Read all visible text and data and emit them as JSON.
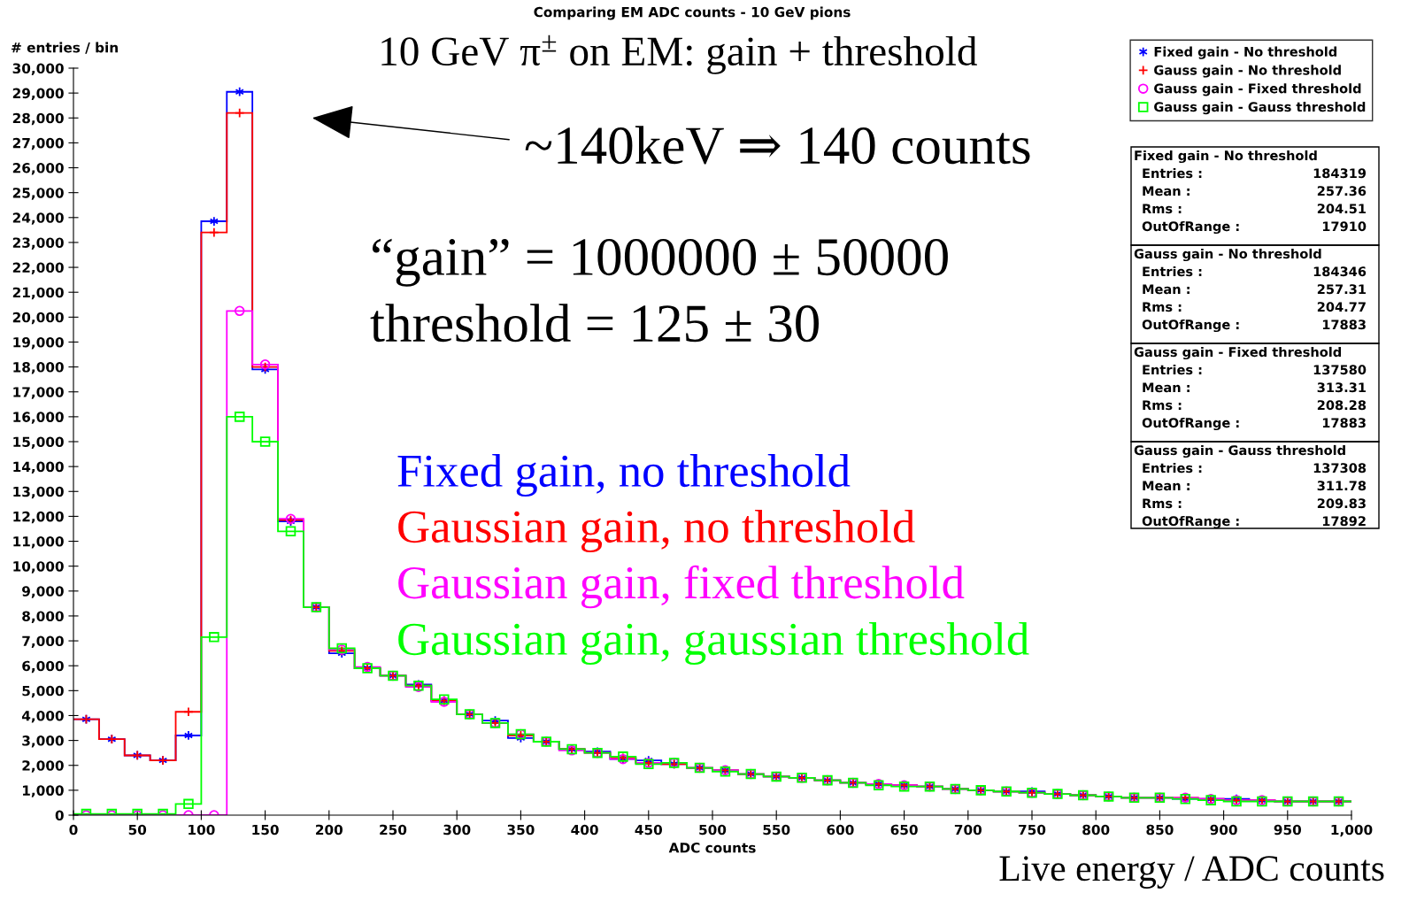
{
  "chart_data": {
    "type": "histogram",
    "title": "Comparing EM ADC counts - 10 GeV pions",
    "xlabel": "ADC counts",
    "ylabel": "# entries / bin",
    "bins": [
      0,
      20,
      40,
      60,
      80,
      100,
      120,
      140,
      160,
      180,
      200,
      220,
      240,
      260,
      280,
      300,
      320,
      340,
      360,
      380,
      400,
      420,
      440,
      460,
      480,
      500,
      520,
      540,
      560,
      580,
      600,
      620,
      640,
      660,
      680,
      700,
      720,
      740,
      760,
      780,
      800,
      820,
      840,
      860,
      880,
      900,
      920,
      940,
      960,
      980,
      1000
    ],
    "series": [
      {
        "name": "Fixed gain - No threshold",
        "color": "#0000ff",
        "marker": "star",
        "values": [
          3850,
          3050,
          2400,
          2200,
          3200,
          23850,
          29050,
          17900,
          11800,
          8350,
          6500,
          5900,
          5600,
          5250,
          4600,
          4050,
          3800,
          3100,
          2950,
          2650,
          2550,
          2250,
          2200,
          2050,
          1900,
          1800,
          1650,
          1550,
          1500,
          1400,
          1300,
          1250,
          1200,
          1150,
          1050,
          1000,
          950,
          950,
          850,
          800,
          750,
          700,
          700,
          650,
          650,
          650,
          600,
          550,
          550,
          550
        ]
      },
      {
        "name": "Gauss gain - No threshold",
        "color": "#ff0000",
        "marker": "cross",
        "values": [
          3850,
          3050,
          2400,
          2200,
          4150,
          23400,
          28200,
          18000,
          11850,
          8350,
          6600,
          5900,
          5600,
          5200,
          4600,
          4050,
          3700,
          3200,
          2950,
          2650,
          2500,
          2300,
          2100,
          2050,
          1900,
          1800,
          1650,
          1550,
          1500,
          1400,
          1300,
          1250,
          1200,
          1150,
          1050,
          1000,
          950,
          900,
          850,
          800,
          750,
          700,
          700,
          700,
          650,
          600,
          600,
          550,
          550,
          550
        ]
      },
      {
        "name": "Gauss gain - Fixed threshold",
        "color": "#ff00ff",
        "marker": "circle",
        "values": [
          0,
          0,
          0,
          0,
          0,
          0,
          20250,
          18100,
          11900,
          8350,
          6650,
          5950,
          5600,
          5150,
          4550,
          4050,
          3700,
          3250,
          2950,
          2600,
          2500,
          2250,
          2100,
          2100,
          1900,
          1800,
          1650,
          1550,
          1500,
          1400,
          1300,
          1250,
          1200,
          1150,
          1050,
          1000,
          950,
          900,
          850,
          800,
          750,
          700,
          700,
          700,
          650,
          600,
          600,
          550,
          550,
          550
        ]
      },
      {
        "name": "Gauss gain - Gauss threshold",
        "color": "#00ff00",
        "marker": "square",
        "values": [
          50,
          50,
          50,
          50,
          450,
          7150,
          16000,
          15000,
          11400,
          8350,
          6700,
          5900,
          5600,
          5200,
          4650,
          4050,
          3700,
          3250,
          2950,
          2650,
          2500,
          2350,
          2050,
          2100,
          1900,
          1750,
          1650,
          1550,
          1500,
          1400,
          1300,
          1200,
          1150,
          1150,
          1050,
          1000,
          950,
          900,
          850,
          800,
          750,
          700,
          700,
          650,
          600,
          550,
          550,
          550,
          550,
          550
        ]
      }
    ],
    "xlim": [
      0,
      1000
    ],
    "xticks": [
      0,
      50,
      100,
      150,
      200,
      250,
      300,
      350,
      400,
      450,
      500,
      550,
      600,
      650,
      700,
      750,
      800,
      850,
      900,
      950,
      {
        "value": 1000,
        "label": "1,000"
      }
    ],
    "ylim": [
      0,
      30000
    ],
    "yticks": [
      0,
      {
        "value": 1000,
        "label": "1,000"
      },
      {
        "value": 2000,
        "label": "2,000"
      },
      {
        "value": 3000,
        "label": "3,000"
      },
      {
        "value": 4000,
        "label": "4,000"
      },
      {
        "value": 5000,
        "label": "5,000"
      },
      {
        "value": 6000,
        "label": "6,000"
      },
      {
        "value": 7000,
        "label": "7,000"
      },
      {
        "value": 8000,
        "label": "8,000"
      },
      {
        "value": 9000,
        "label": "9,000"
      },
      {
        "value": 10000,
        "label": "10,000"
      },
      {
        "value": 11000,
        "label": "11,000"
      },
      {
        "value": 12000,
        "label": "12,000"
      },
      {
        "value": 13000,
        "label": "13,000"
      },
      {
        "value": 14000,
        "label": "14,000"
      },
      {
        "value": 15000,
        "label": "15,000"
      },
      {
        "value": 16000,
        "label": "16,000"
      },
      {
        "value": 17000,
        "label": "17,000"
      },
      {
        "value": 18000,
        "label": "18,000"
      },
      {
        "value": 19000,
        "label": "19,000"
      },
      {
        "value": 20000,
        "label": "20,000"
      },
      {
        "value": 21000,
        "label": "21,000"
      },
      {
        "value": 22000,
        "label": "22,000"
      },
      {
        "value": 23000,
        "label": "23,000"
      },
      {
        "value": 24000,
        "label": "24,000"
      },
      {
        "value": 25000,
        "label": "25,000"
      },
      {
        "value": 26000,
        "label": "26,000"
      },
      {
        "value": 27000,
        "label": "27,000"
      },
      {
        "value": 28000,
        "label": "28,000"
      },
      {
        "value": 29000,
        "label": "29,000"
      },
      {
        "value": 30000,
        "label": "30,000"
      }
    ],
    "grid": false,
    "legend": "top right",
    "annotations": [
      "10 GeV π$^{±}$ on EM: gain + threshold",
      "~140keV ⇒ 140 counts",
      "“gain” = 1000000 ± 50000",
      "threshold = 125 ± 30",
      "Fixed gain, no threshold",
      "Gaussian gain, no threshold",
      "Gaussian gain, fixed threshold",
      "Gaussian gain, gaussian threshold",
      "Live energy / ADC counts",
      "Fixed gain - No threshold\nEntries : 184319\nMean : 257.36\nRms : 204.51\nOutOfRange : 17910",
      "Gauss gain - No threshold\nEntries : 184346\nMean : 257.31\nRms : 204.77\nOutOfRange : 17883",
      "Gauss gain - Fixed threshold\nEntries : 137580\nMean : 313.31\nRms : 208.28\nOutOfRange : 17883",
      "Gauss gain - Gauss threshold\nEntries : 137308\nMean : 311.78\nRms : 209.83\nOutOfRange : 17892"
    ]
  }
}
